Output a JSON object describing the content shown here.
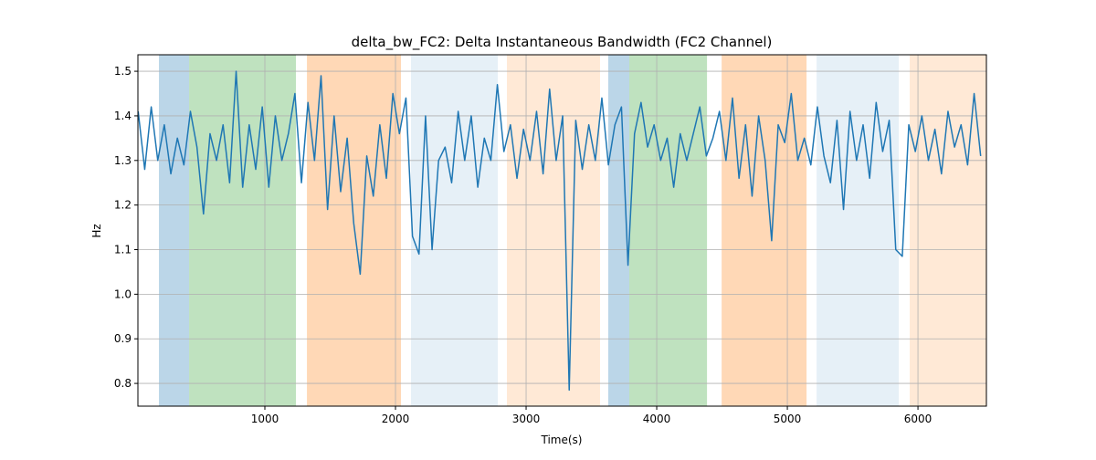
{
  "chart_data": {
    "type": "line",
    "title": "delta_bw_FC2: Delta Instantaneous Bandwidth (FC2 Channel)",
    "xlabel": "Time(s)",
    "ylabel": "Hz",
    "xlim": [
      28,
      6524
    ],
    "ylim": [
      0.749,
      1.537
    ],
    "xticks": [
      1000,
      2000,
      3000,
      4000,
      5000,
      6000
    ],
    "yticks": [
      0.8,
      0.9,
      {
        "value": 1,
        "label": "1.0"
      },
      1.1,
      1.2,
      1.3,
      1.4,
      1.5
    ],
    "grid": true,
    "spans": [
      {
        "start": 189,
        "end": 420,
        "color": "#1f77b4",
        "opacity": 0.3
      },
      {
        "start": 420,
        "end": 1238,
        "color": "#2ca02c",
        "opacity": 0.3
      },
      {
        "start": 1322,
        "end": 2042,
        "color": "#ff7f0e",
        "opacity": 0.3
      },
      {
        "start": 2119,
        "end": 2783,
        "color": "#1f77b4",
        "opacity": 0.11
      },
      {
        "start": 2853,
        "end": 3566,
        "color": "#ff7f0e",
        "opacity": 0.17
      },
      {
        "start": 3629,
        "end": 3790,
        "color": "#1f77b4",
        "opacity": 0.3
      },
      {
        "start": 3790,
        "end": 4385,
        "color": "#2ca02c",
        "opacity": 0.3
      },
      {
        "start": 4497,
        "end": 5147,
        "color": "#ff7f0e",
        "opacity": 0.3
      },
      {
        "start": 5224,
        "end": 5853,
        "color": "#1f77b4",
        "opacity": 0.11
      },
      {
        "start": 5937,
        "end": 6524,
        "color": "#ff7f0e",
        "opacity": 0.17
      }
    ],
    "x": [
      30,
      80,
      130,
      180,
      230,
      280,
      330,
      380,
      430,
      480,
      530,
      580,
      630,
      680,
      730,
      780,
      830,
      880,
      930,
      980,
      1030,
      1080,
      1130,
      1180,
      1230,
      1280,
      1330,
      1380,
      1430,
      1480,
      1530,
      1580,
      1630,
      1680,
      1730,
      1780,
      1830,
      1880,
      1930,
      1980,
      2030,
      2080,
      2130,
      2180,
      2230,
      2280,
      2330,
      2380,
      2430,
      2480,
      2530,
      2580,
      2630,
      2680,
      2730,
      2780,
      2830,
      2880,
      2930,
      2980,
      3030,
      3080,
      3130,
      3180,
      3230,
      3280,
      3330,
      3380,
      3430,
      3480,
      3530,
      3580,
      3630,
      3680,
      3730,
      3780,
      3830,
      3880,
      3930,
      3980,
      4030,
      4080,
      4130,
      4180,
      4230,
      4280,
      4330,
      4380,
      4430,
      4480,
      4530,
      4580,
      4630,
      4680,
      4730,
      4780,
      4830,
      4880,
      4930,
      4980,
      5030,
      5080,
      5130,
      5180,
      5230,
      5280,
      5330,
      5380,
      5430,
      5480,
      5530,
      5580,
      5630,
      5680,
      5730,
      5780,
      5830,
      5880,
      5930,
      5980,
      6030,
      6080,
      6130,
      6180,
      6230,
      6280,
      6330,
      6380,
      6430,
      6480
    ],
    "series": [
      {
        "color": "#1f77b4",
        "values": [
          1.41,
          1.28,
          1.42,
          1.3,
          1.38,
          1.27,
          1.35,
          1.29,
          1.41,
          1.33,
          1.18,
          1.36,
          1.3,
          1.38,
          1.25,
          1.5,
          1.24,
          1.38,
          1.28,
          1.42,
          1.24,
          1.4,
          1.3,
          1.36,
          1.45,
          1.25,
          1.43,
          1.3,
          1.49,
          1.19,
          1.4,
          1.23,
          1.35,
          1.16,
          1.045,
          1.31,
          1.22,
          1.38,
          1.26,
          1.45,
          1.36,
          1.44,
          1.13,
          1.09,
          1.4,
          1.1,
          1.3,
          1.33,
          1.25,
          1.41,
          1.3,
          1.4,
          1.24,
          1.35,
          1.3,
          1.47,
          1.32,
          1.38,
          1.26,
          1.37,
          1.3,
          1.41,
          1.27,
          1.46,
          1.3,
          1.4,
          0.785,
          1.39,
          1.28,
          1.38,
          1.3,
          1.44,
          1.29,
          1.38,
          1.42,
          1.065,
          1.36,
          1.43,
          1.33,
          1.38,
          1.3,
          1.35,
          1.24,
          1.36,
          1.3,
          1.36,
          1.42,
          1.31,
          1.35,
          1.41,
          1.3,
          1.44,
          1.26,
          1.38,
          1.22,
          1.4,
          1.3,
          1.12,
          1.38,
          1.34,
          1.45,
          1.3,
          1.35,
          1.29,
          1.42,
          1.31,
          1.25,
          1.39,
          1.19,
          1.41,
          1.3,
          1.38,
          1.26,
          1.43,
          1.32,
          1.39,
          1.1,
          1.085,
          1.38,
          1.32,
          1.4,
          1.3,
          1.37,
          1.27,
          1.41,
          1.33,
          1.38,
          1.29,
          1.45,
          1.31
        ]
      }
    ]
  }
}
